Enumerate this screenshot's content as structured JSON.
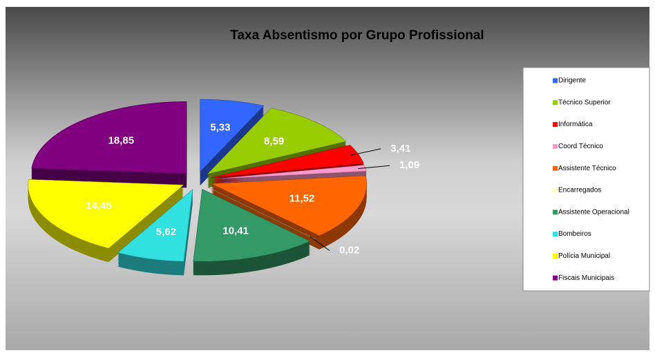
{
  "chart_data": {
    "type": "pie",
    "title": "Taxa Absentismo por Grupo Profissional",
    "categories": [
      "Dirigente",
      "Técnico Superior",
      "Informática",
      "Coord Técnico",
      "Assistente Técnico",
      "Encarregados",
      "Assistente Operacional",
      "Bombeiros",
      "Polícia Municipal",
      "Fiscais Municipais"
    ],
    "values": [
      5.33,
      8.59,
      3.41,
      1.09,
      11.52,
      0.02,
      10.41,
      5.62,
      14.45,
      18.85
    ],
    "value_labels": [
      "5,33",
      "8,59",
      "3,41",
      "1,09",
      "11,52",
      "0,02",
      "10,41",
      "5,62",
      "14,45",
      "18,85"
    ],
    "colors": [
      "#3366ff",
      "#99cc00",
      "#ff0000",
      "#ff99cc",
      "#ff6600",
      "#ffffcc",
      "#339966",
      "#33e0e0",
      "#ffff00",
      "#800080"
    ],
    "legend": "right"
  }
}
